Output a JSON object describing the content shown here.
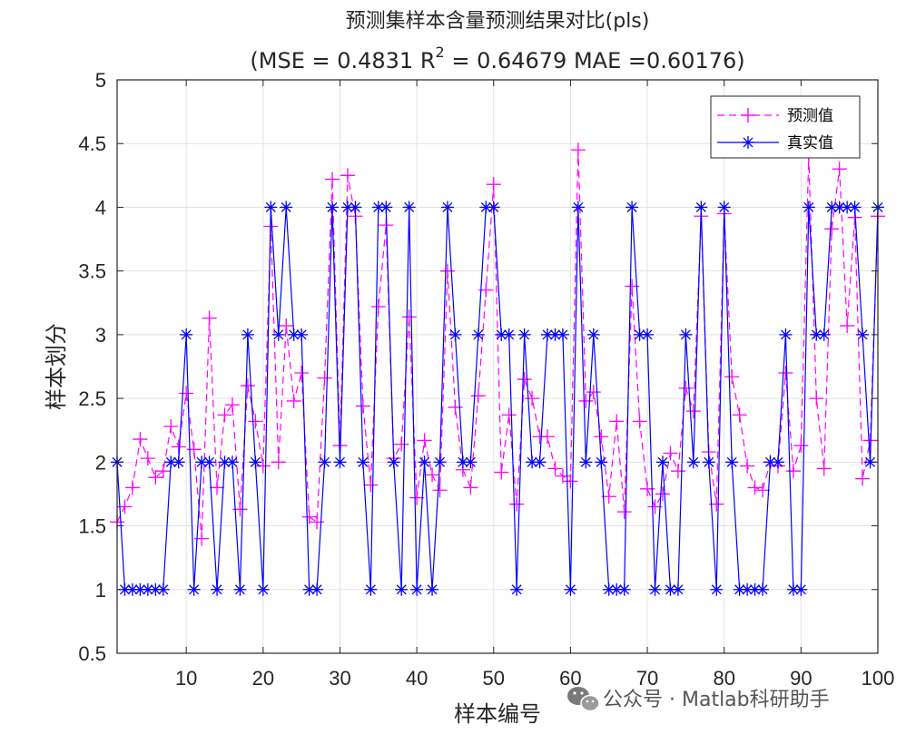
{
  "chart_data": {
    "type": "line",
    "title_line1": "预测集样本含量预测结果对比(pls)",
    "title_line2": {
      "part1": "(MSE = 0.4831 R",
      "sup": "2",
      "part2": " = 0.64679 MAE =0.60176)"
    },
    "xlabel": "样本编号",
    "ylabel": "样本划分",
    "xlim": [
      1,
      100
    ],
    "ylim": [
      0.5,
      5
    ],
    "xticks": [
      10,
      20,
      30,
      40,
      50,
      60,
      70,
      80,
      90,
      100
    ],
    "yticks": [
      0.5,
      1,
      1.5,
      2,
      2.5,
      3,
      3.5,
      4,
      4.5,
      5
    ],
    "grid": true,
    "legend_position": "top-right",
    "series": [
      {
        "name": "预测值",
        "color": "#ff00ff",
        "marker": "plus",
        "line": "dashed",
        "values": [
          1.53,
          1.65,
          1.8,
          2.18,
          2.03,
          1.88,
          1.93,
          2.28,
          2.12,
          2.54,
          2.1,
          1.4,
          3.13,
          1.8,
          2.37,
          2.45,
          1.63,
          2.6,
          2.32,
          1.97,
          3.85,
          2.0,
          3.07,
          2.48,
          2.7,
          1.57,
          1.53,
          2.66,
          4.22,
          2.13,
          4.25,
          3.93,
          2.44,
          1.82,
          3.22,
          3.86,
          2.03,
          2.14,
          3.14,
          1.72,
          2.17,
          1.9,
          1.78,
          3.5,
          2.43,
          1.94,
          1.8,
          2.52,
          3.35,
          4.18,
          1.92,
          2.37,
          1.67,
          2.65,
          2.5,
          2.2,
          2.2,
          1.95,
          1.89,
          1.85,
          4.45,
          2.48,
          2.55,
          2.2,
          1.73,
          2.32,
          1.61,
          3.38,
          2.32,
          1.79,
          1.65,
          1.75,
          2.07,
          1.93,
          2.58,
          2.4,
          3.93,
          2.08,
          1.67,
          3.95,
          2.67,
          2.37,
          1.97,
          1.8,
          1.78,
          2.0,
          1.97,
          2.7,
          1.93,
          2.13,
          4.4,
          2.5,
          1.95,
          3.83,
          4.3,
          3.07,
          3.92,
          1.87,
          2.17,
          3.93
        ]
      },
      {
        "name": "真实值",
        "color": "#0000ff",
        "marker": "asterisk",
        "line": "solid",
        "values": [
          2,
          1,
          1,
          1,
          1,
          1,
          1,
          2,
          2,
          3,
          1,
          2,
          2,
          1,
          2,
          2,
          1,
          3,
          2,
          1,
          4,
          3,
          4,
          3,
          3,
          1,
          1,
          2,
          4,
          2,
          4,
          4,
          2,
          1,
          4,
          4,
          2,
          1,
          4,
          1,
          2,
          1,
          2,
          4,
          3,
          2,
          2,
          3,
          4,
          4,
          3,
          3,
          1,
          3,
          2,
          2,
          3,
          3,
          3,
          1,
          4,
          2,
          3,
          2,
          1,
          1,
          1,
          4,
          3,
          3,
          1,
          2,
          1,
          1,
          3,
          2,
          4,
          2,
          1,
          4,
          2,
          1,
          1,
          1,
          1,
          2,
          2,
          3,
          1,
          1,
          4,
          3,
          3,
          4,
          4,
          4,
          4,
          3,
          2,
          4
        ]
      }
    ]
  },
  "watermark": {
    "icon": "wechat-icon",
    "text": "公众号 · Matlab科研助手"
  }
}
